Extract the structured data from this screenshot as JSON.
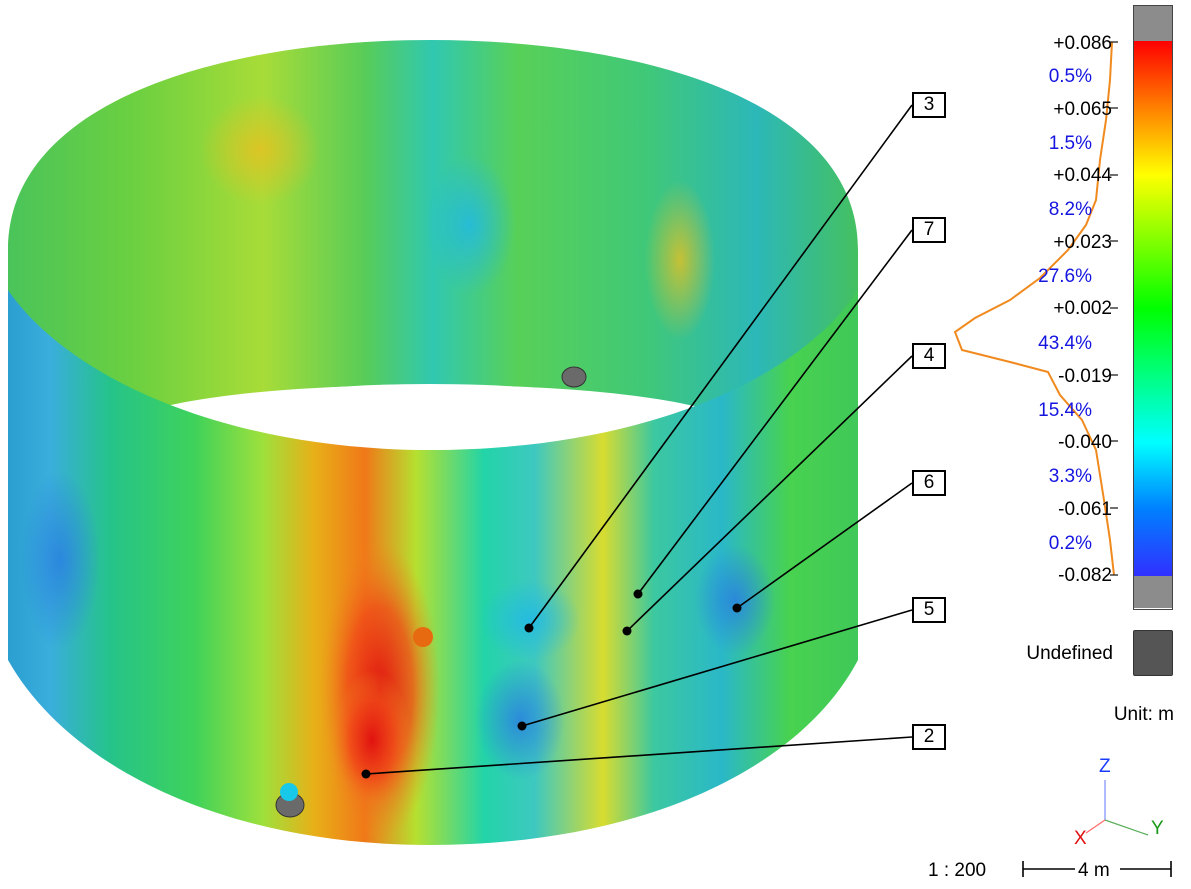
{
  "colorbar": {
    "ticks": [
      "+0.086",
      "+0.065",
      "+0.044",
      "+0.023",
      "+0.002",
      "-0.019",
      "-0.040",
      "-0.061",
      "-0.082"
    ],
    "percentages": [
      "0.5%",
      "1.5%",
      "8.2%",
      "27.6%",
      "43.4%",
      "15.4%",
      "3.3%",
      "0.2%"
    ],
    "stops": [
      "#ff0000",
      "#ff8000",
      "#ffff00",
      "#80ff00",
      "#00ff00",
      "#00ff80",
      "#00ffff",
      "#0080ff",
      "#3030ff"
    ],
    "histogram_color": "#f08a1e",
    "undefined_label": "Undefined",
    "undefined_color": "#555555",
    "unit_label": "Unit: m"
  },
  "callouts": [
    {
      "label": "3"
    },
    {
      "label": "7"
    },
    {
      "label": "4"
    },
    {
      "label": "6"
    },
    {
      "label": "5"
    },
    {
      "label": "2"
    }
  ],
  "scale": {
    "ratio": "1 : 200",
    "length": "4 m"
  },
  "axes": {
    "z": "Z",
    "x": "X",
    "y": "Y"
  }
}
